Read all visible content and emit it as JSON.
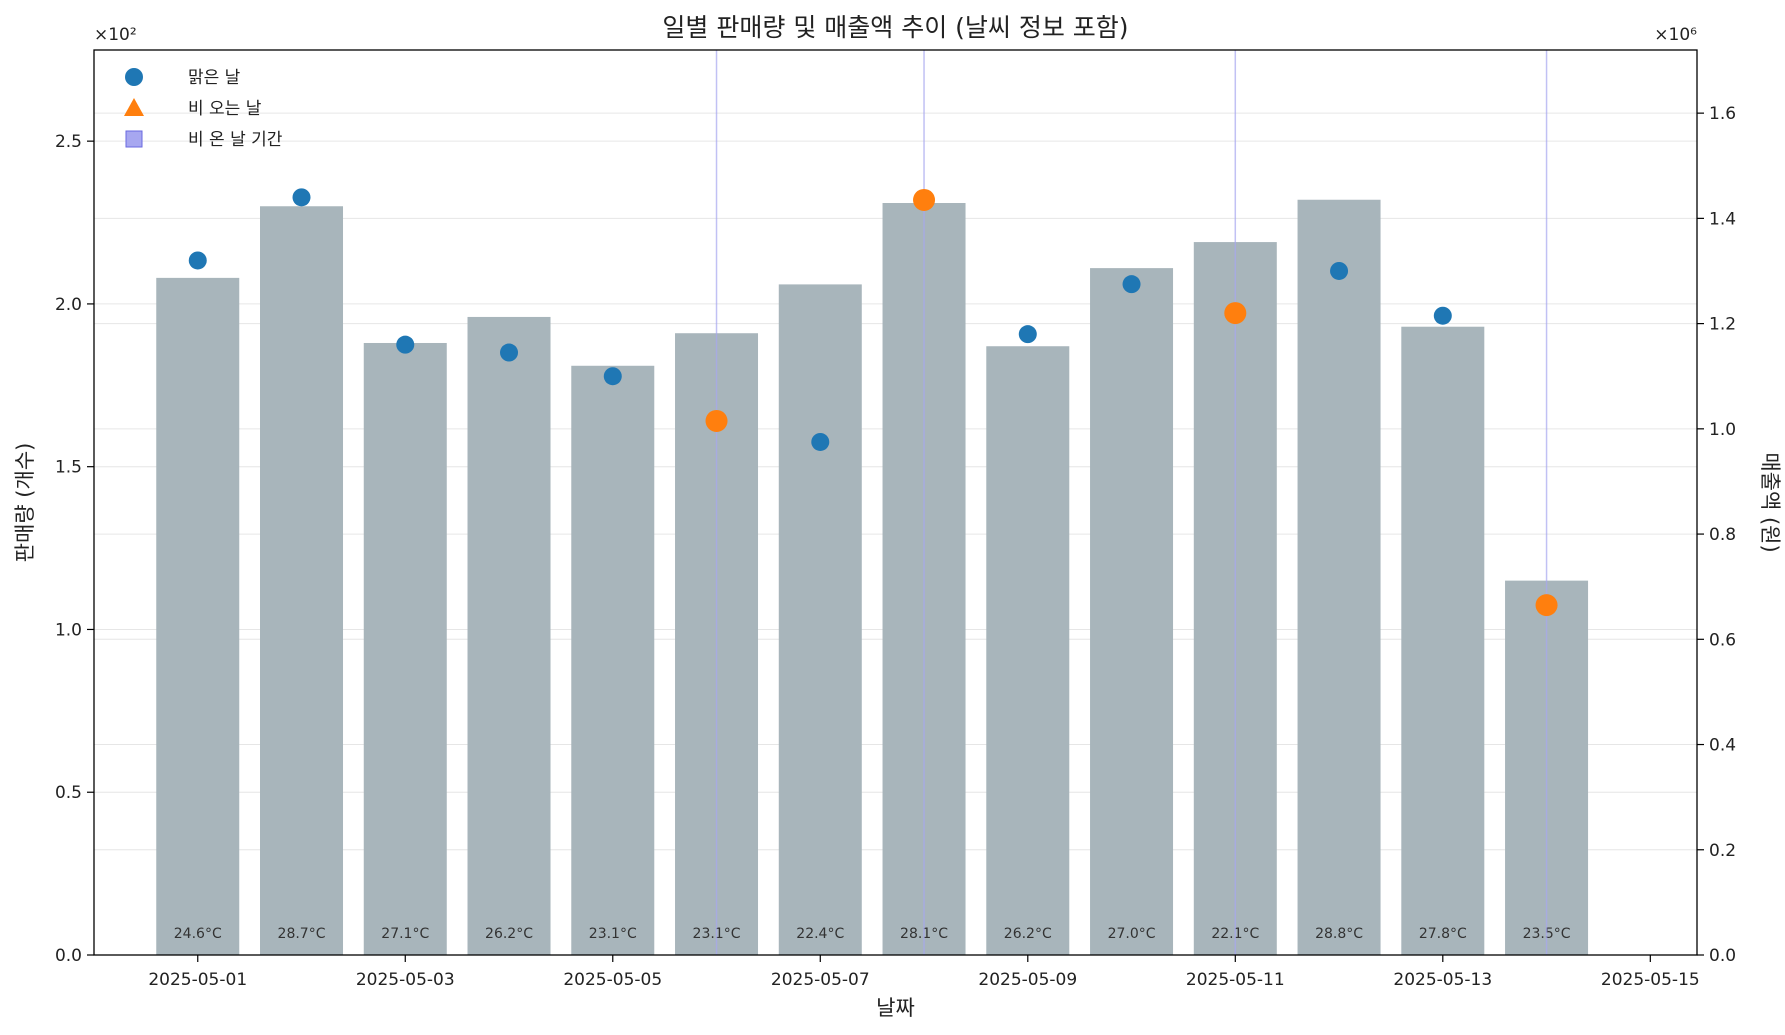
{
  "chart_data": {
    "type": "bar",
    "title": "일별 판매량 및 매출액 추이 (날씨 정보 포함)",
    "xlabel": "날짜",
    "ylabel": "판매량 (개수)",
    "y2label": "매출액 (원)",
    "y_multiplier": "×10²",
    "y2_multiplier": "×10⁶",
    "ylim": [
      0,
      2.78
    ],
    "y2lim": [
      0,
      1.72
    ],
    "y_ticks": [
      "0.0",
      "0.5",
      "1.0",
      "1.5",
      "2.0",
      "2.5"
    ],
    "y2_ticks": [
      "0.0",
      "0.2",
      "0.4",
      "0.6",
      "0.8",
      "1.0",
      "1.2",
      "1.4",
      "1.6"
    ],
    "x_ticks": [
      "2025-05-01",
      "2025-05-03",
      "2025-05-05",
      "2025-05-07",
      "2025-05-09",
      "2025-05-11",
      "2025-05-13",
      "2025-05-15"
    ],
    "dates": [
      "2025-05-01",
      "2025-05-02",
      "2025-05-03",
      "2025-05-04",
      "2025-05-05",
      "2025-05-06",
      "2025-05-07",
      "2025-05-08",
      "2025-05-09",
      "2025-05-10",
      "2025-05-11",
      "2025-05-12",
      "2025-05-13",
      "2025-05-14"
    ],
    "sales": [
      2.08,
      2.3,
      1.88,
      1.96,
      1.81,
      1.91,
      2.06,
      2.31,
      1.87,
      2.11,
      2.19,
      2.32,
      1.93,
      1.15
    ],
    "revenue": [
      1.32,
      1.44,
      1.16,
      1.145,
      1.1,
      1.015,
      0.975,
      1.435,
      1.18,
      1.275,
      1.22,
      1.3,
      1.215,
      0.665
    ],
    "weather": [
      "sunny",
      "sunny",
      "sunny",
      "sunny",
      "sunny",
      "rain",
      "sunny",
      "rain",
      "sunny",
      "sunny",
      "rain",
      "sunny",
      "sunny",
      "rain"
    ],
    "temperatures": [
      "24.6°C",
      "28.7°C",
      "27.1°C",
      "26.2°C",
      "23.1°C",
      "23.1°C",
      "22.4°C",
      "28.1°C",
      "26.2°C",
      "27.0°C",
      "22.1°C",
      "28.8°C",
      "27.8°C",
      "23.5°C"
    ],
    "legend": {
      "placement": "top-left",
      "items": [
        "맑은 날",
        "비 오는 날",
        "비 온 날 기간"
      ]
    },
    "colors": {
      "bar": "#a8b5bb",
      "sunny": "#1f77b4",
      "rain": "#ff7f0e",
      "rain_period": "#a7a7f0",
      "grid": "#e6e6e6"
    },
    "grid": true
  }
}
